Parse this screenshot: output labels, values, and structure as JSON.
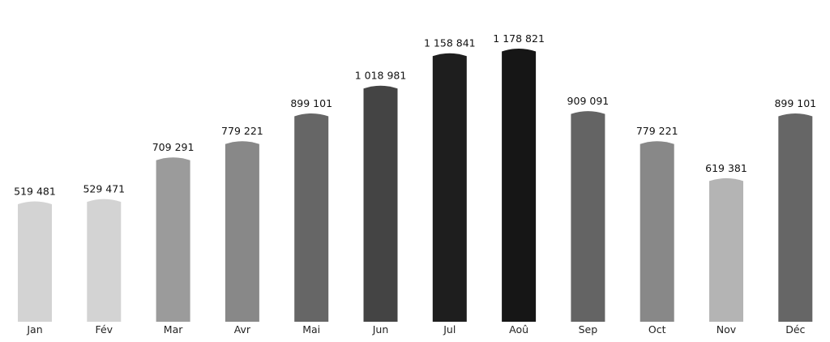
{
  "chart_data": {
    "type": "bar",
    "categories": [
      "Jan",
      "Fév",
      "Mar",
      "Avr",
      "Mai",
      "Jun",
      "Jul",
      "Aoû",
      "Sep",
      "Oct",
      "Nov",
      "Déc"
    ],
    "values": [
      519481,
      529471,
      709291,
      779221,
      899101,
      1018981,
      1158841,
      1178821,
      909091,
      779221,
      619381,
      899101
    ],
    "value_labels": [
      "519 481",
      "529 471",
      "709 291",
      "779 221",
      "899 101",
      "1 018 981",
      "1 158 841",
      "1 178 821",
      "909 091",
      "779 221",
      "619 381",
      "899 101"
    ],
    "colors": [
      "#d3d3d3",
      "#d3d3d3",
      "#9b9b9b",
      "#888888",
      "#666666",
      "#444444",
      "#1e1e1e",
      "#161616",
      "#646464",
      "#888888",
      "#b4b4b4",
      "#666666"
    ],
    "title": "",
    "xlabel": "",
    "ylabel": "",
    "ylim": [
      0,
      1178821
    ],
    "grid": false,
    "legend": "none"
  }
}
